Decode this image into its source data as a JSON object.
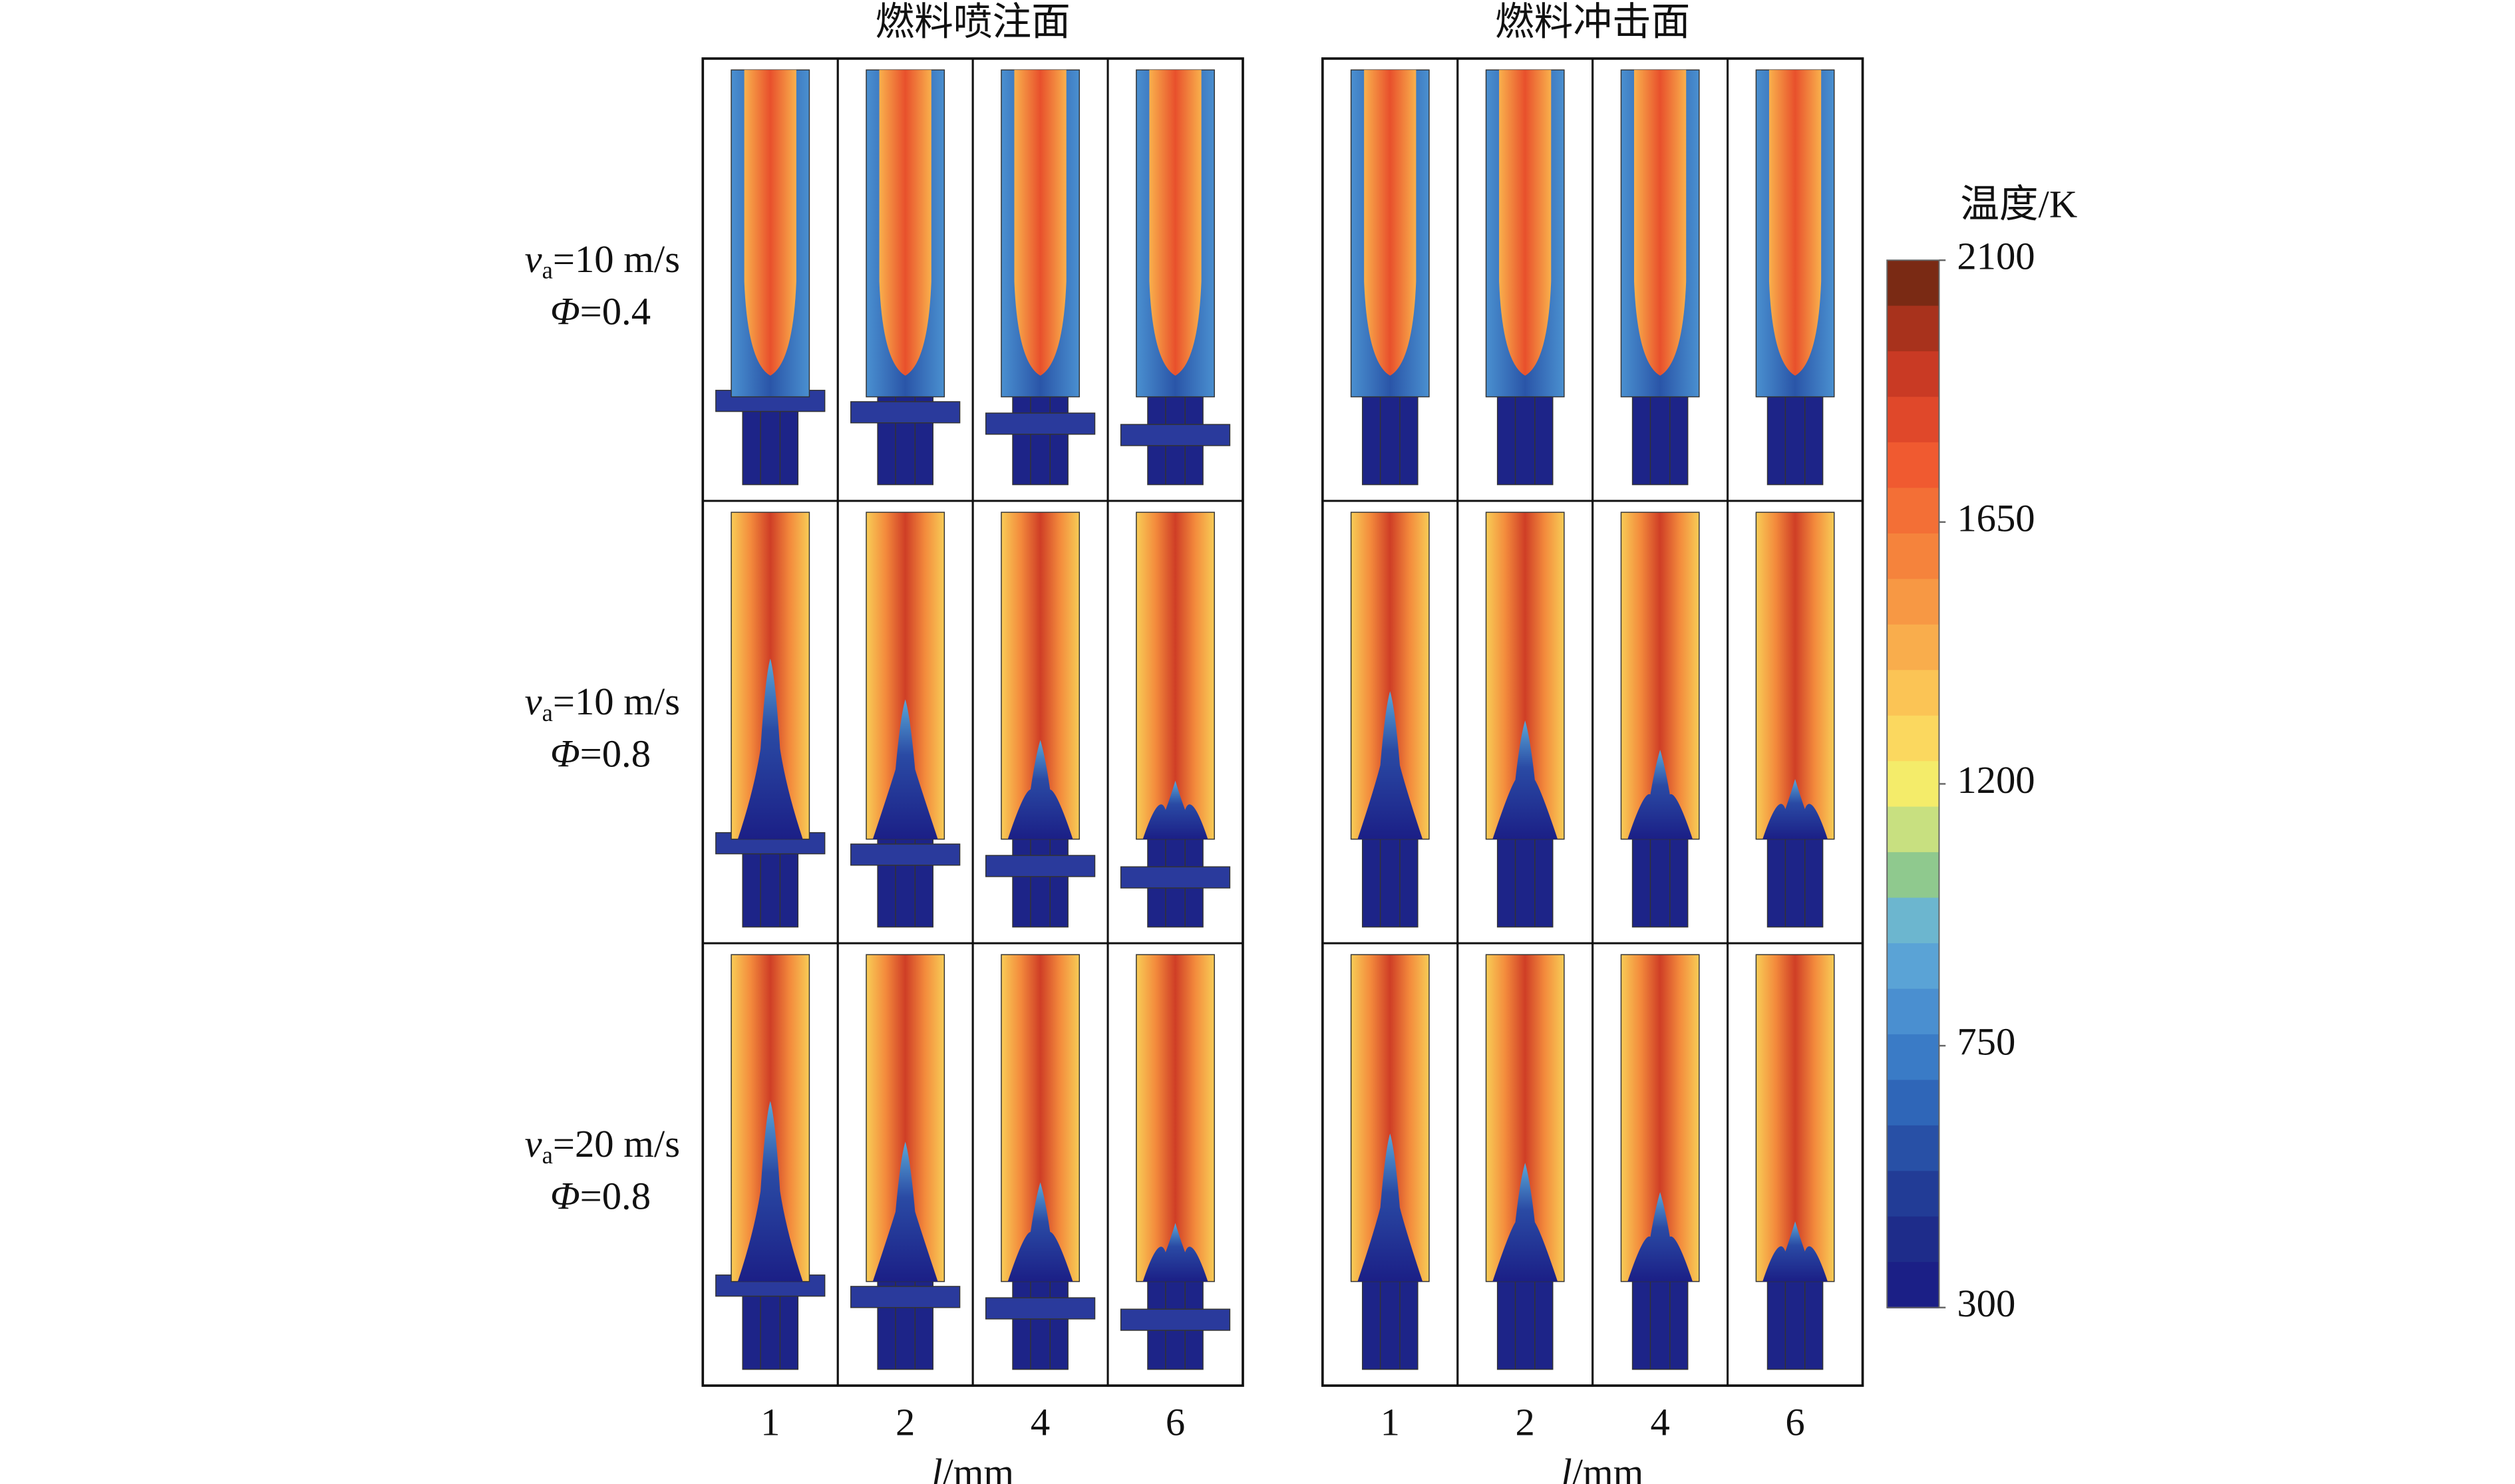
{
  "titles": [
    "燃料喷注面",
    "燃料冲击面"
  ],
  "rows": [
    {
      "v": "v",
      "sub": "a",
      "speed": "=10 m/s",
      "phi": "Φ",
      "ratio": "=0.4"
    },
    {
      "v": "v",
      "sub": "a",
      "speed": "=10 m/s",
      "phi": "Φ",
      "ratio": "=0.8"
    },
    {
      "v": "v",
      "sub": "a",
      "speed": "=20 m/s",
      "phi": "Φ",
      "ratio": "=0.8"
    }
  ],
  "columns": [
    1,
    2,
    4,
    6
  ],
  "x_label": {
    "var": "l",
    "unit": "/mm"
  },
  "colorbar": {
    "title": "温度/K",
    "range": [
      300,
      2100
    ],
    "ticks": [
      2100,
      1650,
      1200,
      750,
      300
    ],
    "colors": [
      "#7a2a14",
      "#a8321c",
      "#c93a24",
      "#e0482a",
      "#f05a30",
      "#f36f36",
      "#f5833c",
      "#f79844",
      "#f9ad4c",
      "#fbc455",
      "#fbd85f",
      "#f4ec6a",
      "#c8e080",
      "#8fc98e",
      "#6cb6cf",
      "#5aa3d6",
      "#4a8fd0",
      "#3a7bc6",
      "#2f66b8",
      "#2850a6",
      "#223c96",
      "#1e2c8a",
      "#1b1f86"
    ]
  }
}
